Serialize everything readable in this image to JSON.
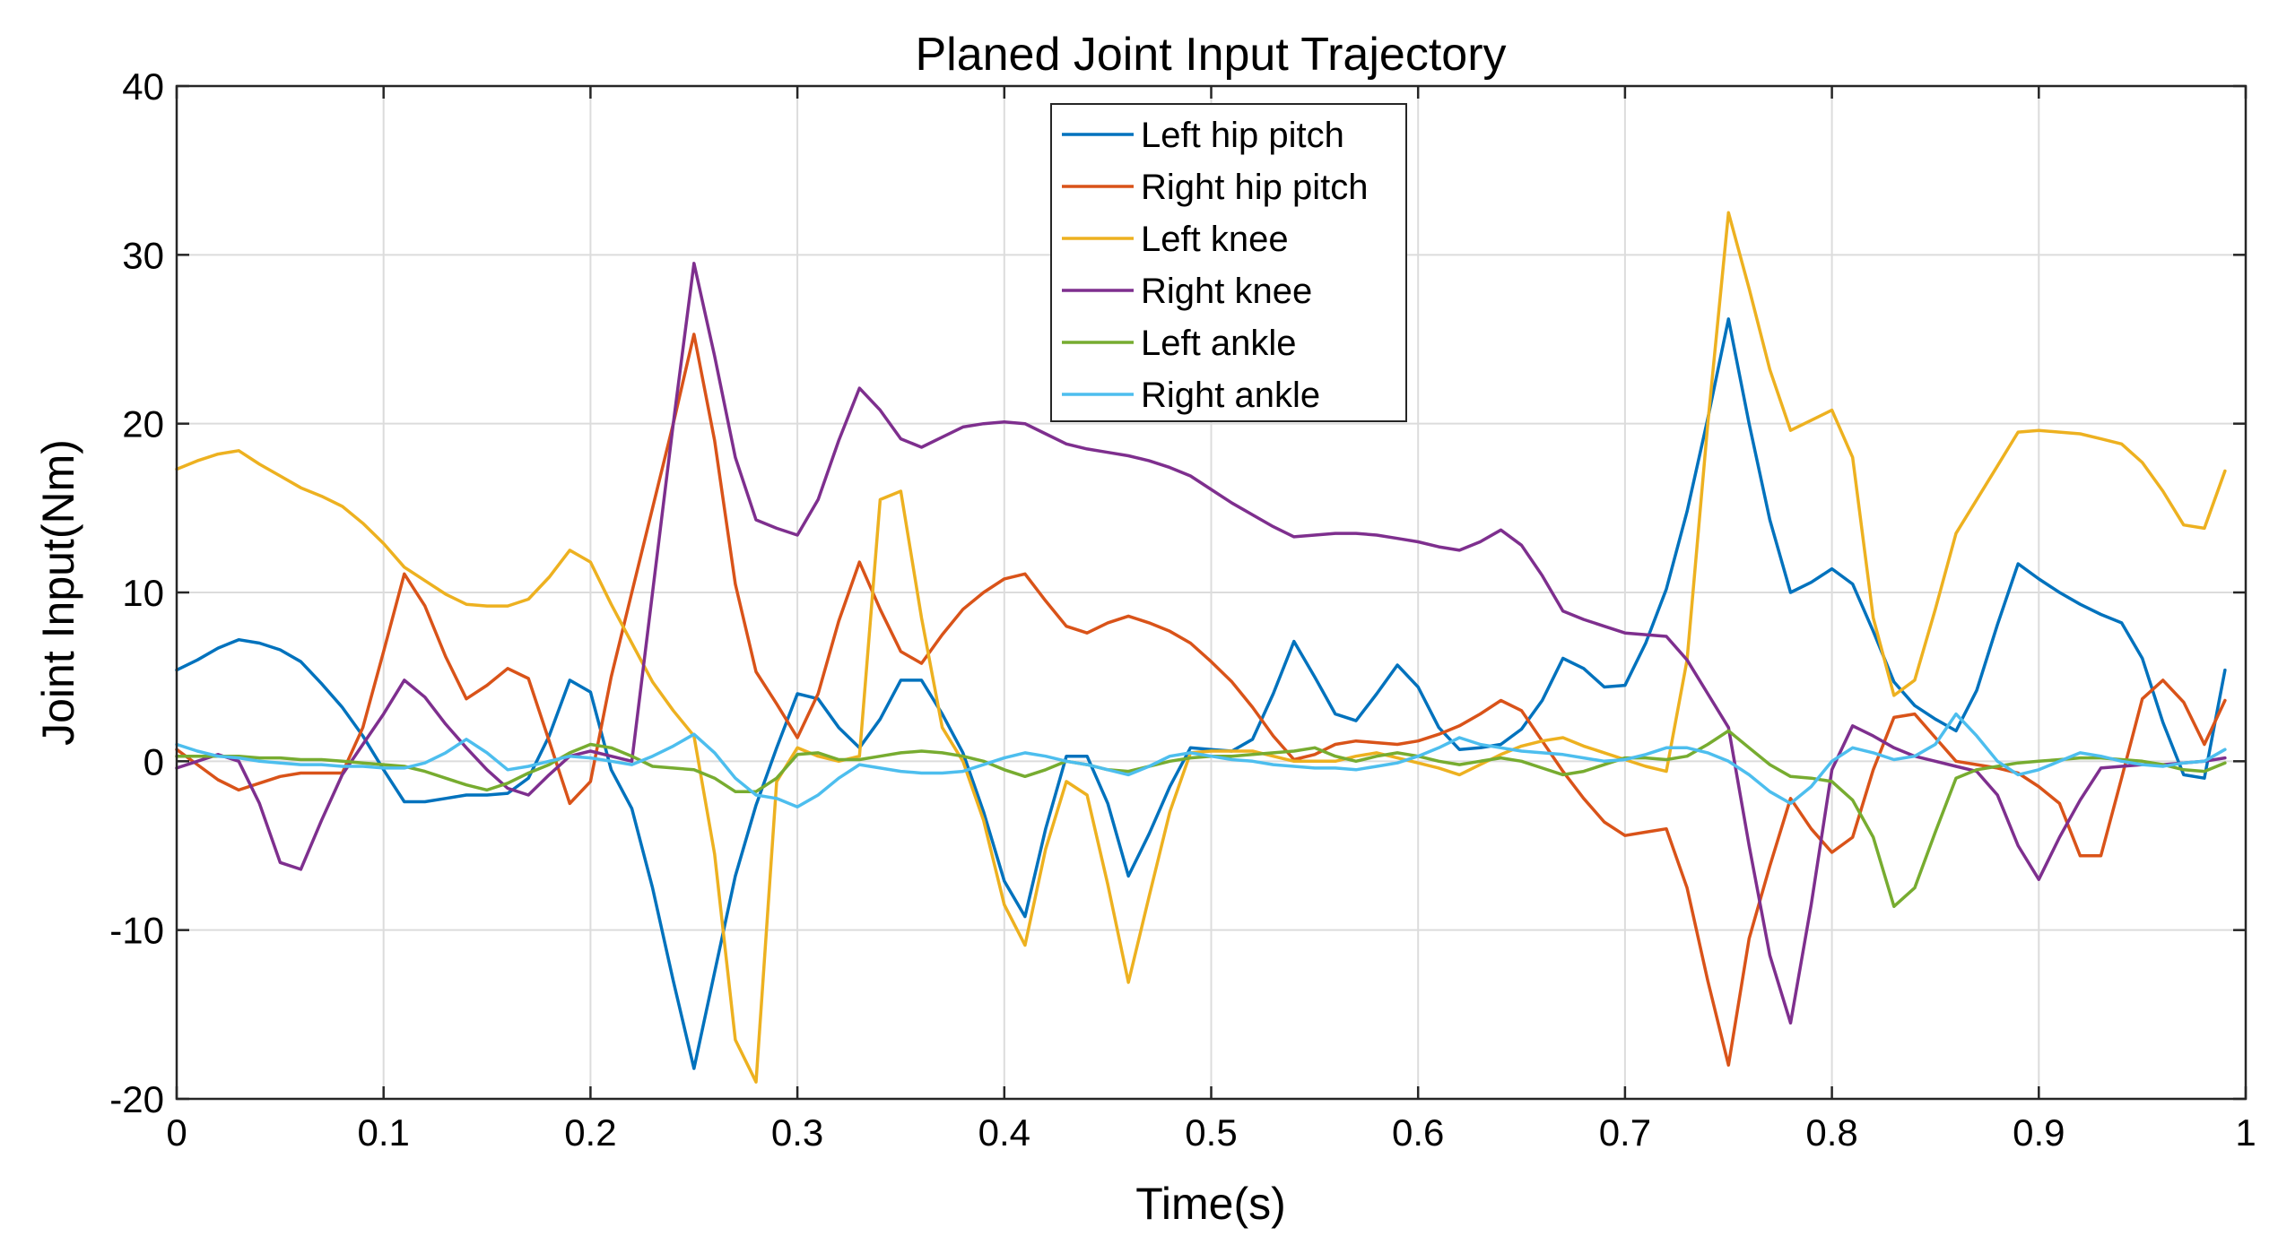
{
  "chart_data": {
    "type": "line",
    "title": "Planed Joint Input Trajectory",
    "xlabel": "Time(s)",
    "ylabel": "Joint Input(Nm)",
    "xlim": [
      0,
      1
    ],
    "ylim": [
      -20,
      40
    ],
    "grid": true,
    "legend_position": "top-center",
    "x_ticks": [
      0,
      0.1,
      0.2,
      0.3,
      0.4,
      0.5,
      0.6,
      0.7,
      0.8,
      0.9,
      1
    ],
    "x_tick_labels": [
      "0",
      "0.1",
      "0.2",
      "0.3",
      "0.4",
      "0.5",
      "0.6",
      "0.7",
      "0.8",
      "0.9",
      "1"
    ],
    "y_ticks": [
      -20,
      -10,
      0,
      10,
      20,
      30,
      40
    ],
    "y_tick_labels": [
      "-20",
      "-10",
      "0",
      "10",
      "20",
      "30",
      "40"
    ],
    "x": [
      0,
      0.01,
      0.02,
      0.03,
      0.04,
      0.05,
      0.06,
      0.07,
      0.08,
      0.09,
      0.1,
      0.11,
      0.12,
      0.13,
      0.14,
      0.15,
      0.16,
      0.17,
      0.18,
      0.19,
      0.2,
      0.21,
      0.22,
      0.23,
      0.24,
      0.25,
      0.26,
      0.27,
      0.28,
      0.29,
      0.3,
      0.31,
      0.32,
      0.33,
      0.34,
      0.35,
      0.36,
      0.37,
      0.38,
      0.39,
      0.4,
      0.41,
      0.42,
      0.43,
      0.44,
      0.45,
      0.46,
      0.47,
      0.48,
      0.49,
      0.5,
      0.51,
      0.52,
      0.53,
      0.54,
      0.55,
      0.56,
      0.57,
      0.58,
      0.59,
      0.6,
      0.61,
      0.62,
      0.63,
      0.64,
      0.65,
      0.66,
      0.67,
      0.68,
      0.69,
      0.7,
      0.71,
      0.72,
      0.73,
      0.74,
      0.75,
      0.76,
      0.77,
      0.78,
      0.79,
      0.8,
      0.81,
      0.82,
      0.83,
      0.84,
      0.85,
      0.86,
      0.87,
      0.88,
      0.89,
      0.9,
      0.91,
      0.92,
      0.93,
      0.94,
      0.95,
      0.96,
      0.97,
      0.98,
      0.99
    ],
    "series": [
      {
        "name": "Left hip pitch",
        "color": "#0072BD",
        "values": [
          5.4,
          6.0,
          6.7,
          7.2,
          7.0,
          6.6,
          5.9,
          4.6,
          3.2,
          1.5,
          -0.5,
          -2.4,
          -2.4,
          -2.2,
          -2.0,
          -2.0,
          -1.9,
          -1.0,
          1.5,
          4.8,
          4.1,
          -0.5,
          -2.8,
          -7.5,
          -13.0,
          -18.2,
          -12.5,
          -6.8,
          -2.6,
          0.8,
          4.0,
          3.7,
          2.0,
          0.8,
          2.5,
          4.8,
          4.8,
          2.8,
          0.5,
          -3.0,
          -7.1,
          -9.2,
          -4.0,
          0.3,
          0.3,
          -2.5,
          -6.8,
          -4.3,
          -1.5,
          0.8,
          0.7,
          0.6,
          1.3,
          4.0,
          7.1,
          5.0,
          2.8,
          2.4,
          4.0,
          5.7,
          4.4,
          2.0,
          0.7,
          0.8,
          1.0,
          1.9,
          3.6,
          6.1,
          5.5,
          4.4,
          4.5,
          7.0,
          10.2,
          14.8,
          20.3,
          26.2,
          20.0,
          14.3,
          10.0,
          10.6,
          11.4,
          10.5,
          7.7,
          4.7,
          3.3,
          2.5,
          1.8,
          4.2,
          8.1,
          11.7,
          10.8,
          10.0,
          9.3,
          8.7,
          8.2,
          6.1,
          2.3,
          -0.8,
          -1.0,
          5.4
        ]
      },
      {
        "name": "Right hip pitch",
        "color": "#D95319",
        "values": [
          0.7,
          -0.2,
          -1.1,
          -1.7,
          -1.3,
          -0.9,
          -0.7,
          -0.7,
          -0.7,
          2.0,
          6.5,
          11.1,
          9.2,
          6.2,
          3.7,
          4.5,
          5.5,
          4.9,
          1.2,
          -2.5,
          -1.2,
          5.0,
          10.0,
          15.0,
          20.0,
          25.3,
          19.0,
          10.5,
          5.3,
          3.4,
          1.4,
          4.0,
          8.3,
          11.8,
          9.0,
          6.5,
          5.8,
          7.5,
          9.0,
          10.0,
          10.8,
          11.1,
          9.5,
          8.0,
          7.6,
          8.2,
          8.6,
          8.2,
          7.7,
          7.0,
          5.9,
          4.7,
          3.2,
          1.5,
          0.1,
          0.4,
          1.0,
          1.2,
          1.1,
          1.0,
          1.2,
          1.6,
          2.1,
          2.8,
          3.6,
          3.0,
          1.2,
          -0.6,
          -2.2,
          -3.6,
          -4.4,
          -4.2,
          -4.0,
          -7.5,
          -13.0,
          -18.0,
          -10.5,
          -6.2,
          -2.2,
          -4.0,
          -5.4,
          -4.5,
          -0.5,
          2.6,
          2.8,
          1.4,
          0.0,
          -0.2,
          -0.4,
          -0.7,
          -1.5,
          -2.5,
          -5.6,
          -5.6,
          -1.0,
          3.7,
          4.8,
          3.5,
          1.0,
          3.6
        ]
      },
      {
        "name": "Left knee",
        "color": "#EDB120",
        "values": [
          17.3,
          17.8,
          18.2,
          18.4,
          17.6,
          16.9,
          16.2,
          15.7,
          15.1,
          14.1,
          12.9,
          11.5,
          10.7,
          9.9,
          9.3,
          9.2,
          9.2,
          9.6,
          10.9,
          12.5,
          11.8,
          9.3,
          7.0,
          4.7,
          3.0,
          1.5,
          -5.5,
          -16.5,
          -19.0,
          -1.2,
          0.8,
          0.3,
          0.0,
          0.3,
          15.5,
          16.0,
          8.5,
          2.0,
          0.0,
          -3.5,
          -8.5,
          -10.9,
          -5.2,
          -1.2,
          -2.0,
          -7.3,
          -13.1,
          -8.0,
          -3.0,
          0.5,
          0.6,
          0.6,
          0.6,
          0.3,
          0.0,
          0.0,
          0.0,
          0.3,
          0.5,
          0.2,
          -0.1,
          -0.4,
          -0.8,
          -0.2,
          0.4,
          0.9,
          1.2,
          1.4,
          0.9,
          0.5,
          0.1,
          -0.3,
          -0.6,
          6.0,
          20.0,
          32.5,
          28.0,
          23.2,
          19.6,
          20.2,
          20.8,
          18.0,
          8.5,
          3.9,
          4.8,
          9.0,
          13.5,
          15.5,
          17.5,
          19.5,
          19.6,
          19.5,
          19.4,
          19.1,
          18.8,
          17.7,
          16.0,
          14.0,
          13.8,
          17.2
        ]
      },
      {
        "name": "Right knee",
        "color": "#7E2F8E",
        "values": [
          -0.4,
          0.0,
          0.4,
          0.0,
          -2.5,
          -6.0,
          -6.4,
          -3.5,
          -0.8,
          1.0,
          2.8,
          4.8,
          3.8,
          2.2,
          0.8,
          -0.5,
          -1.6,
          -2.0,
          -0.8,
          0.3,
          0.6,
          0.3,
          0.0,
          10.0,
          20.0,
          29.5,
          24.0,
          18.0,
          14.3,
          13.8,
          13.4,
          15.5,
          19.0,
          22.1,
          20.8,
          19.1,
          18.6,
          19.2,
          19.8,
          20.0,
          20.1,
          20.0,
          19.4,
          18.8,
          18.5,
          18.3,
          18.1,
          17.8,
          17.4,
          16.9,
          16.1,
          15.3,
          14.6,
          13.9,
          13.3,
          13.4,
          13.5,
          13.5,
          13.4,
          13.2,
          13.0,
          12.7,
          12.5,
          13.0,
          13.7,
          12.8,
          11.0,
          8.9,
          8.4,
          8.0,
          7.6,
          7.5,
          7.4,
          6.0,
          4.0,
          2.0,
          -5.0,
          -11.5,
          -15.5,
          -8.5,
          -0.5,
          2.1,
          1.5,
          0.8,
          0.3,
          0.0,
          -0.3,
          -0.6,
          -2.0,
          -5.0,
          -7.0,
          -4.5,
          -2.3,
          -0.4,
          -0.3,
          -0.2,
          -0.2,
          -0.1,
          0.0,
          0.2
        ]
      },
      {
        "name": "Left ankle",
        "color": "#77AC30",
        "values": [
          0.3,
          0.3,
          0.3,
          0.3,
          0.2,
          0.2,
          0.1,
          0.1,
          0.0,
          -0.1,
          -0.2,
          -0.3,
          -0.6,
          -1.0,
          -1.4,
          -1.7,
          -1.3,
          -0.7,
          -0.2,
          0.5,
          1.0,
          0.8,
          0.3,
          -0.3,
          -0.4,
          -0.5,
          -1.0,
          -1.8,
          -1.8,
          -1.0,
          0.4,
          0.5,
          0.1,
          0.1,
          0.3,
          0.5,
          0.6,
          0.5,
          0.3,
          0.0,
          -0.5,
          -0.9,
          -0.5,
          0.0,
          -0.2,
          -0.5,
          -0.6,
          -0.3,
          0.0,
          0.2,
          0.3,
          0.3,
          0.4,
          0.5,
          0.6,
          0.8,
          0.3,
          0.0,
          0.3,
          0.5,
          0.3,
          0.0,
          -0.2,
          0.0,
          0.2,
          0.0,
          -0.4,
          -0.8,
          -0.6,
          -0.2,
          0.2,
          0.2,
          0.1,
          0.3,
          1.0,
          1.8,
          0.8,
          -0.2,
          -0.9,
          -1.0,
          -1.2,
          -2.3,
          -4.5,
          -8.6,
          -7.5,
          -4.2,
          -1.0,
          -0.5,
          -0.3,
          -0.1,
          0.0,
          0.1,
          0.2,
          0.2,
          0.1,
          0.0,
          -0.2,
          -0.5,
          -0.6,
          -0.1
        ]
      },
      {
        "name": "Right ankle",
        "color": "#4DBEEE",
        "values": [
          1.0,
          0.6,
          0.3,
          0.2,
          0.0,
          -0.1,
          -0.2,
          -0.2,
          -0.3,
          -0.3,
          -0.4,
          -0.4,
          -0.1,
          0.5,
          1.3,
          0.5,
          -0.5,
          -0.3,
          0.0,
          0.3,
          0.2,
          0.0,
          -0.2,
          0.3,
          0.9,
          1.6,
          0.5,
          -1.0,
          -2.0,
          -2.2,
          -2.7,
          -2.0,
          -1.0,
          -0.2,
          -0.4,
          -0.6,
          -0.7,
          -0.7,
          -0.6,
          -0.2,
          0.2,
          0.5,
          0.3,
          0.0,
          -0.2,
          -0.5,
          -0.8,
          -0.3,
          0.3,
          0.5,
          0.3,
          0.1,
          0.0,
          -0.2,
          -0.3,
          -0.4,
          -0.4,
          -0.5,
          -0.3,
          -0.1,
          0.3,
          0.8,
          1.4,
          1.0,
          0.8,
          0.6,
          0.5,
          0.4,
          0.2,
          0.0,
          0.1,
          0.4,
          0.8,
          0.8,
          0.5,
          0.0,
          -0.8,
          -1.8,
          -2.5,
          -1.5,
          0.0,
          0.8,
          0.5,
          0.1,
          0.3,
          1.0,
          2.8,
          1.5,
          0.0,
          -0.8,
          -0.5,
          0.0,
          0.5,
          0.3,
          0.0,
          -0.2,
          -0.3,
          -0.1,
          0.0,
          0.7
        ]
      }
    ]
  }
}
